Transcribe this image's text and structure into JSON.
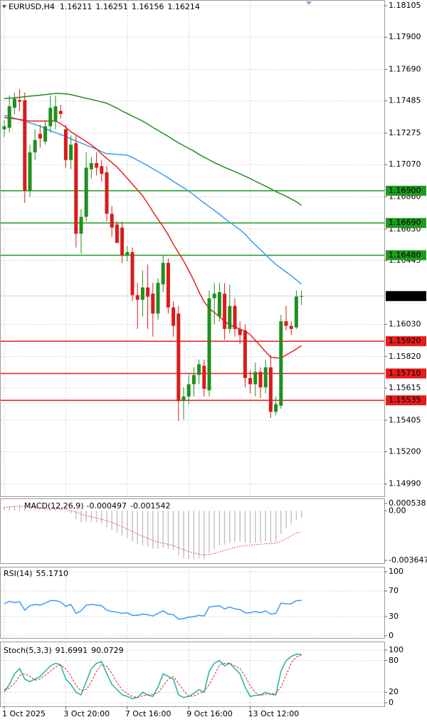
{
  "chart_data": [
    {
      "type": "candlestick",
      "title": "EURUSD,H4",
      "categories": [
        "1 Oct 2025",
        null,
        null,
        null,
        null,
        null,
        null,
        null,
        null,
        null,
        null,
        null,
        "3 Oct 20:00",
        null,
        null,
        null,
        null,
        null,
        null,
        null,
        null,
        null,
        null,
        null,
        "7 Oct 16:00",
        null,
        null,
        null,
        null,
        null,
        null,
        null,
        null,
        null,
        null,
        null,
        "9 Oct 16:00",
        null,
        null,
        null,
        null,
        null,
        null,
        null,
        null,
        null,
        null,
        null,
        "13 Oct 12:00",
        null,
        null,
        null,
        null,
        null,
        null,
        null,
        null,
        null,
        null
      ],
      "open": [
        1.173,
        1.1731,
        1.1744,
        1.1749,
        1.1749,
        1.169,
        1.1715,
        1.1727,
        1.1722,
        1.1732,
        1.1735,
        1.1742,
        1.173,
        1.171,
        1.1721,
        1.1662,
        1.1673,
        1.1704,
        1.1708,
        1.1706,
        1.1702,
        1.1675,
        1.1668,
        1.1666,
        1.1648,
        1.165,
        1.1622,
        1.1619,
        1.1627,
        1.1623,
        1.161,
        1.1629,
        1.1643,
        1.1614,
        1.161,
        1.1553,
        1.1556,
        1.1564,
        1.157,
        1.1576,
        1.156,
        1.162,
        1.1608,
        1.1623,
        1.16,
        1.1615,
        1.16,
        1.1599,
        1.1568,
        1.1564,
        1.1572,
        1.1562,
        1.1575,
        1.1546,
        1.155,
        1.1605,
        1.1602,
        1.1601,
        1.16211
      ],
      "high": [
        1.1736,
        1.1752,
        1.1754,
        1.1756,
        1.1754,
        1.172,
        1.173,
        1.1733,
        1.1736,
        1.1752,
        1.1752,
        1.1746,
        1.1733,
        1.1726,
        1.1726,
        1.1678,
        1.1715,
        1.1712,
        1.1715,
        1.171,
        1.1706,
        1.168,
        1.167,
        1.167,
        1.1654,
        1.1653,
        1.163,
        1.1638,
        1.1642,
        1.163,
        1.1633,
        1.1648,
        1.1646,
        1.1618,
        1.1615,
        1.1562,
        1.157,
        1.1575,
        1.158,
        1.158,
        1.1625,
        1.163,
        1.163,
        1.163,
        1.1629,
        1.162,
        1.1605,
        1.1603,
        1.1573,
        1.1578,
        1.1575,
        1.158,
        1.1583,
        1.1556,
        1.1609,
        1.1615,
        1.1605,
        1.1625,
        1.16251
      ],
      "low": [
        1.1725,
        1.1728,
        1.174,
        1.1742,
        1.1682,
        1.1686,
        1.171,
        1.1718,
        1.172,
        1.1728,
        1.173,
        1.1737,
        1.1705,
        1.1704,
        1.1653,
        1.1649,
        1.167,
        1.1698,
        1.17,
        1.1696,
        1.167,
        1.166,
        1.1656,
        1.1643,
        1.1644,
        1.1618,
        1.16,
        1.1608,
        1.16,
        1.1595,
        1.1606,
        1.1624,
        1.161,
        1.1595,
        1.154,
        1.1541,
        1.1551,
        1.1556,
        1.1564,
        1.1556,
        1.1556,
        1.1603,
        1.1605,
        1.1593,
        1.1597,
        1.1595,
        1.159,
        1.1562,
        1.1558,
        1.1556,
        1.1555,
        1.1558,
        1.1542,
        1.1544,
        1.1548,
        1.1599,
        1.1596,
        1.16,
        1.16156
      ],
      "close": [
        1.1732,
        1.1745,
        1.175,
        1.1748,
        1.169,
        1.1715,
        1.1723,
        1.1724,
        1.1732,
        1.1744,
        1.1745,
        1.174,
        1.171,
        1.172,
        1.1662,
        1.1673,
        1.1705,
        1.1708,
        1.1705,
        1.1701,
        1.1675,
        1.1666,
        1.1656,
        1.1648,
        1.165,
        1.1622,
        1.1619,
        1.1627,
        1.1621,
        1.161,
        1.163,
        1.1643,
        1.1614,
        1.1602,
        1.1553,
        1.1556,
        1.1564,
        1.157,
        1.1577,
        1.1561,
        1.162,
        1.1623,
        1.1624,
        1.16,
        1.1615,
        1.16,
        1.1596,
        1.1568,
        1.1564,
        1.1572,
        1.1562,
        1.1575,
        1.1546,
        1.1551,
        1.1605,
        1.1602,
        1.16,
        1.16211,
        1.16214
      ],
      "up_color": "#1f8f1f",
      "down_color": "#d81c1c",
      "moving_averages": [
        {
          "color": "#1f8f1f",
          "values": [
            1.175,
            1.17503,
            1.17506,
            1.17509,
            1.17513,
            1.17516,
            1.17519,
            1.17522,
            1.17526,
            1.1753,
            1.17534,
            1.17533,
            1.17531,
            1.17526,
            1.17518,
            1.1751,
            1.17502,
            1.17495,
            1.17487,
            1.17478,
            1.1747,
            1.17454,
            1.17438,
            1.17419,
            1.17403,
            1.17386,
            1.1737,
            1.17354,
            1.17335,
            1.17312,
            1.17293,
            1.17273,
            1.17254,
            1.17232,
            1.17212,
            1.17194,
            1.17176,
            1.17158,
            1.17137,
            1.17119,
            1.17101,
            1.17083,
            1.17069,
            1.17052,
            1.17038,
            1.17024,
            1.1701,
            1.16995,
            1.16979,
            1.16962,
            1.16946,
            1.1693,
            1.16913,
            1.16895,
            1.16879,
            1.16864,
            1.16846,
            1.16828,
            1.16805
          ]
        },
        {
          "color": "#3d9cf0",
          "values": [
            1.17392,
            1.17382,
            1.17372,
            1.17362,
            1.17352,
            1.17342,
            1.17332,
            1.1732,
            1.17305,
            1.17292,
            1.17279,
            1.17266,
            1.17253,
            1.17238,
            1.17224,
            1.17211,
            1.17197,
            1.17184,
            1.1717,
            1.17155,
            1.17141,
            1.17139,
            1.17137,
            1.17134,
            1.17132,
            1.17117,
            1.17099,
            1.17081,
            1.17063,
            1.17043,
            1.17024,
            1.17004,
            1.16984,
            1.1696,
            1.1694,
            1.1692,
            1.16897,
            1.16873,
            1.16845,
            1.16821,
            1.16796,
            1.16772,
            1.16747,
            1.16719,
            1.16695,
            1.16671,
            1.16646,
            1.16617,
            1.1658,
            1.16548,
            1.16515,
            1.16483,
            1.1645,
            1.16421,
            1.16396,
            1.16371,
            1.16346,
            1.1632,
            1.16291
          ]
        },
        {
          "color": "#e8231d",
          "values": [
            1.17377,
            1.17373,
            1.17369,
            1.17364,
            1.17359,
            1.17354,
            1.17354,
            1.17354,
            1.17354,
            1.17354,
            1.17354,
            1.17337,
            1.17313,
            1.17285,
            1.17263,
            1.17242,
            1.1722,
            1.17198,
            1.17172,
            1.17139,
            1.17111,
            1.17083,
            1.17054,
            1.17019,
            1.16981,
            1.16943,
            1.16905,
            1.16867,
            1.16818,
            1.16763,
            1.16714,
            1.16666,
            1.16613,
            1.16551,
            1.16497,
            1.16443,
            1.1638,
            1.16315,
            1.16241,
            1.16177,
            1.16134,
            1.16107,
            1.1608,
            1.16049,
            1.16027,
            1.16013,
            1.15999,
            1.15985,
            1.15963,
            1.15926,
            1.15889,
            1.15852,
            1.15815,
            1.15812,
            1.1581,
            1.1583,
            1.15849,
            1.15869,
            1.15891
          ]
        }
      ],
      "levels": [
        {
          "value": 1.169,
          "label": "1.16900",
          "color": "#1e9b1e"
        },
        {
          "value": 1.1669,
          "label": "1.16690",
          "color": "#1e9b1e"
        },
        {
          "value": 1.1648,
          "label": "1.16480",
          "color": "#1e9b1e"
        },
        {
          "value": 1.1592,
          "label": "1.15920",
          "color": "#e81c1c"
        },
        {
          "value": 1.1571,
          "label": "1.15710",
          "color": "#e81c1c"
        },
        {
          "value": 1.15535,
          "label": "1.15535",
          "color": "#e81c1c"
        }
      ],
      "ylim": [
        1.1491,
        1.18133
      ],
      "yticks": [
        1.18105,
        {
          "value": 1.179,
          "label": "1.17900"
        },
        {
          "value": 1.1769,
          "label": "1.17690"
        },
        1.17485,
        1.17275,
        {
          "value": 1.1707,
          "label": "1.17070"
        },
        {
          "value": 1.1686,
          "label": "1.16860"
        },
        {
          "value": 1.1665,
          "label": "1.16650"
        },
        1.16445,
        {
          "value": 1.1603,
          "label": "1.16030"
        },
        {
          "value": 1.1582,
          "label": "1.15820"
        },
        1.15615,
        1.15405,
        {
          "value": 1.152,
          "label": "1.15200"
        },
        {
          "value": 1.1499,
          "label": "1.14990"
        }
      ],
      "grid": true
    },
    {
      "type": "macd",
      "title": "MACD(12,26,9)",
      "series": [
        {
          "color": "#c4c4c4",
          "style": "histogram",
          "values": [
            0.0003,
            0.00035,
            0.00038,
            0.0004,
            0.0002,
            0.0001,
            8e-05,
            6e-05,
            8e-05,
            0.00012,
            0.00014,
            0.0001,
            -0.0001,
            -0.0002,
            -0.0006,
            -0.00085,
            -0.0008,
            -0.00082,
            -0.00088,
            -0.00095,
            -0.0012,
            -0.0014,
            -0.0016,
            -0.00185,
            -0.002,
            -0.00225,
            -0.00245,
            -0.00255,
            -0.00265,
            -0.0028,
            -0.0028,
            -0.0027,
            -0.0028,
            -0.0029,
            -0.0033,
            -0.0035,
            -0.00355,
            -0.00355,
            -0.0035,
            -0.0035,
            -0.0031,
            -0.0028,
            -0.00255,
            -0.0025,
            -0.00235,
            -0.0023,
            -0.00225,
            -0.00235,
            -0.0024,
            -0.00235,
            -0.00235,
            -0.00225,
            -0.00235,
            -0.0023,
            -0.0017,
            -0.0013,
            -0.001,
            -0.0007,
            -0.000497
          ]
        },
        {
          "color": "#e8231d",
          "style": "dotted",
          "values": [
            0.00025,
            0.00028,
            0.00031,
            0.00033,
            0.00031,
            0.00026,
            0.00022,
            0.00018,
            0.00016,
            0.00015,
            0.00015,
            0.00014,
            9e-05,
            3e-05,
            -0.0001,
            -0.00025,
            -0.00036,
            -0.00045,
            -0.00054,
            -0.00062,
            -0.00074,
            -0.00087,
            -0.00102,
            -0.00118,
            -0.00135,
            -0.00153,
            -0.00171,
            -0.00188,
            -0.00203,
            -0.00219,
            -0.00231,
            -0.00239,
            -0.00247,
            -0.00256,
            -0.00271,
            -0.00287,
            -0.003,
            -0.00311,
            -0.00319,
            -0.00325,
            -0.00322,
            -0.00314,
            -0.00302,
            -0.00292,
            -0.0028,
            -0.0027,
            -0.00261,
            -0.00256,
            -0.00253,
            -0.00249,
            -0.00246,
            -0.00242,
            -0.00241,
            -0.00239,
            -0.00225,
            -0.00206,
            -0.00185,
            -0.00162,
            -0.001542
          ]
        }
      ],
      "ylim": [
        -0.003647,
        0.000538
      ],
      "yticks": [
        0.000538,
        {
          "value": 0,
          "label": "0.00"
        },
        -0.003647
      ],
      "grid": false
    },
    {
      "type": "oscillator",
      "title": "RSI(14)",
      "series": [
        {
          "color": "#3d9cf0",
          "style": "solid",
          "values": [
            50,
            54,
            52,
            53,
            40,
            47,
            49,
            48,
            51,
            55,
            55,
            53,
            46,
            49,
            35,
            39,
            48,
            49,
            48,
            47,
            40,
            38,
            37,
            35,
            36,
            32,
            32,
            34,
            33,
            31,
            35,
            39,
            34,
            33,
            26,
            27,
            29,
            30,
            32,
            31,
            45,
            46,
            47,
            42,
            45,
            42,
            41,
            36,
            36,
            38,
            36,
            39,
            34,
            35,
            51,
            50,
            50,
            55,
            55.171
          ],
          "value_labels": [
            null,
            null,
            null,
            null,
            null,
            null,
            null,
            null,
            null,
            null,
            null,
            null,
            null,
            null,
            null,
            null,
            null,
            null,
            null,
            null,
            null,
            null,
            null,
            null,
            null,
            null,
            null,
            null,
            null,
            null,
            null,
            null,
            null,
            null,
            null,
            null,
            null,
            null,
            null,
            null,
            null,
            null,
            null,
            null,
            null,
            null,
            null,
            null,
            null,
            null,
            null,
            null,
            null,
            null,
            null,
            null,
            null,
            null,
            "55.1710"
          ]
        }
      ],
      "ylim": [
        0,
        100
      ],
      "yticks": [
        100,
        70,
        30,
        0
      ],
      "grid": true
    },
    {
      "type": "oscillator",
      "title": "Stoch(5,3,3)",
      "series": [
        {
          "color": "#20b2aa",
          "style": "solid",
          "values": [
            20,
            35,
            55,
            65,
            45,
            40,
            45,
            50,
            60,
            70,
            75,
            72,
            45,
            35,
            20,
            15,
            40,
            65,
            75,
            78,
            55,
            35,
            25,
            15,
            12,
            8,
            10,
            20,
            15,
            12,
            30,
            55,
            50,
            45,
            15,
            10,
            12,
            18,
            25,
            20,
            60,
            75,
            80,
            70,
            75,
            65,
            55,
            30,
            12,
            14,
            15,
            20,
            16,
            15,
            60,
            80,
            88,
            92,
            91.6991
          ]
        },
        {
          "color": "#e8231d",
          "style": "dashed",
          "values": [
            25,
            28,
            37,
            52,
            55,
            50,
            43,
            45,
            52,
            60,
            68,
            72,
            64,
            51,
            33,
            23,
            25,
            40,
            60,
            73,
            69,
            56,
            38,
            25,
            17,
            12,
            10,
            13,
            15,
            16,
            19,
            32,
            45,
            50,
            37,
            23,
            12,
            13,
            18,
            21,
            35,
            52,
            72,
            75,
            75,
            70,
            65,
            50,
            32,
            19,
            14,
            16,
            17,
            17,
            30,
            52,
            76,
            87,
            90.0729
          ]
        }
      ],
      "ylim": [
        0,
        100
      ],
      "yticks": [
        100,
        80,
        20,
        0
      ],
      "grid": true
    }
  ]
}
